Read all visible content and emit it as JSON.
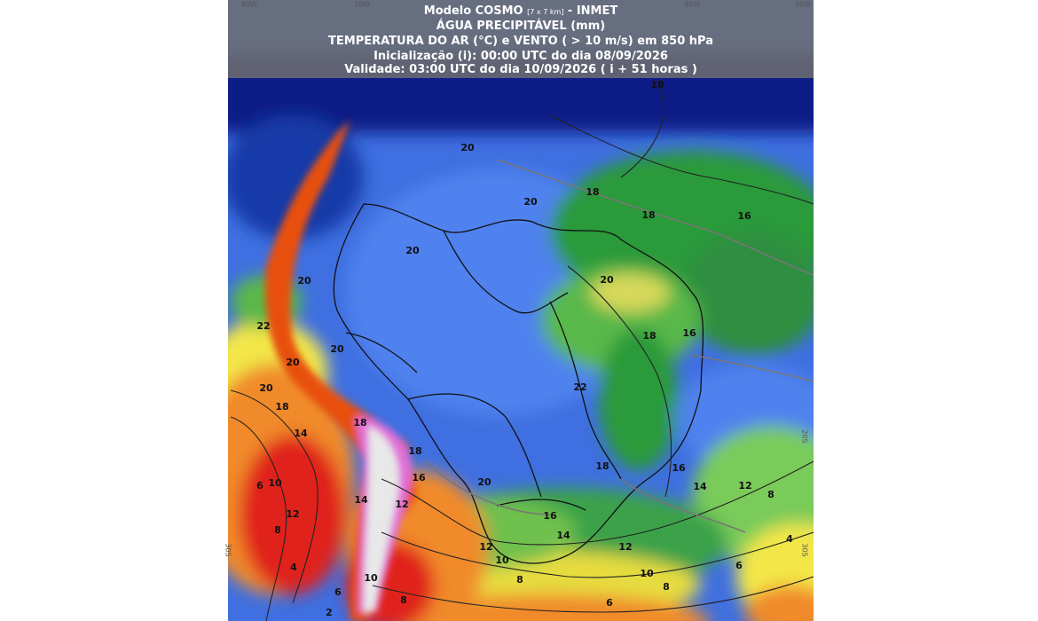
{
  "header": {
    "model": "Modelo COSMO",
    "resolution": "[7 x 7 km]",
    "source": "- INMET",
    "line2": "ÁGUA PRECIPITÁVEL (mm)",
    "line3": "TEMPERATURA DO AR (°C) e VENTO ( > 10 m/s) em 850 hPa",
    "line4": "Inicialização (i): 00:00 UTC do dia 08/09/2026",
    "line5": "Validade: 03:00 UTC do dia 10/09/2026 ( i + 51 horas )"
  },
  "axis_labels": [
    "80W",
    "70W",
    "40W",
    "30W",
    "20S",
    "30S",
    "30S"
  ],
  "contour_labels": [
    "18",
    "20",
    "18",
    "20",
    "18",
    "16",
    "20",
    "20",
    "20",
    "22",
    "18",
    "16",
    "20",
    "20",
    "22",
    "20",
    "18",
    "18",
    "14",
    "18",
    "18",
    "16",
    "6",
    "10",
    "16",
    "20",
    "14",
    "12",
    "8",
    "14",
    "12",
    "12",
    "8",
    "16",
    "14",
    "4",
    "12",
    "12",
    "10",
    "6",
    "4",
    "10",
    "10",
    "8",
    "8",
    "8",
    "6",
    "2",
    "6"
  ]
}
